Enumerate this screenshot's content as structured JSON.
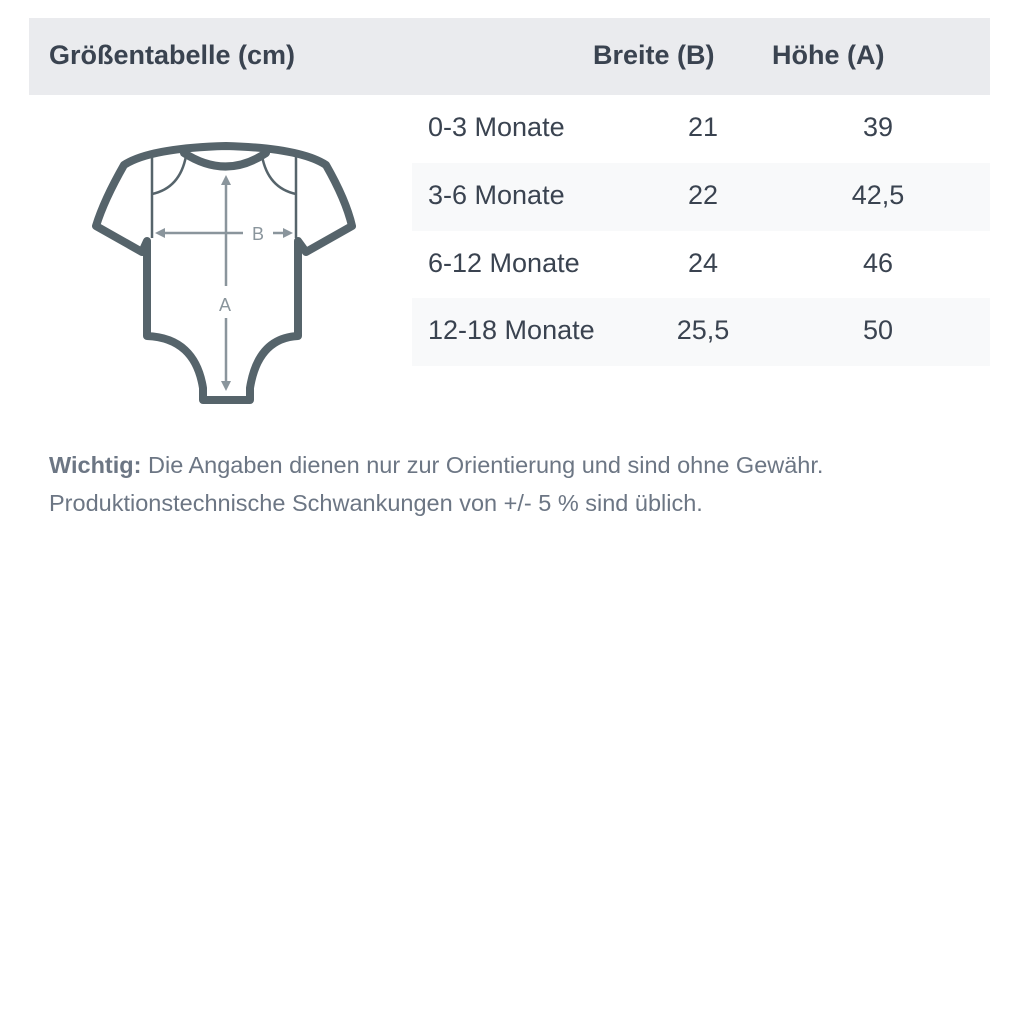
{
  "table": {
    "title": "Größentabelle (cm)",
    "columns": [
      "Breite (B)",
      "Höhe (A)"
    ],
    "rows": [
      {
        "size": "0-3 Monate",
        "breite": "21",
        "hoehe": "39"
      },
      {
        "size": "3-6 Monate",
        "breite": "22",
        "hoehe": "42,5"
      },
      {
        "size": "6-12 Monate",
        "breite": "24",
        "hoehe": "46"
      },
      {
        "size": "12-18 Monate",
        "breite": "25,5",
        "hoehe": "50"
      }
    ]
  },
  "illustration": {
    "icon": "baby-bodysuit-icon",
    "label_width": "B",
    "label_height": "A",
    "outline_color": "#56646b",
    "arrow_color": "#8a959c"
  },
  "note": {
    "label": "Wichtig:",
    "line1": "Die Angaben dienen nur zur Orientierung und sind ohne Gewähr.",
    "line2": "Produktionstechnische Schwankungen von +/- 5 % sind üblich."
  }
}
